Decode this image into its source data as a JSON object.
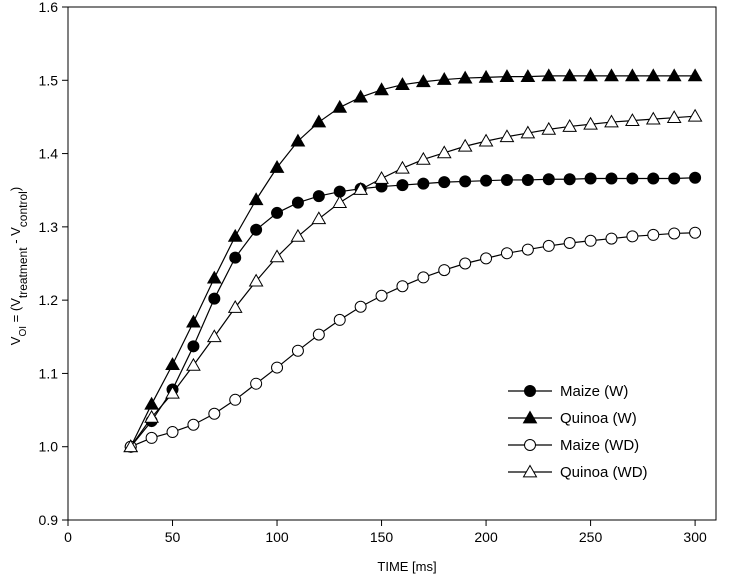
{
  "chart_data": {
    "type": "line",
    "xlabel": "TIME [ms]",
    "ylabel": "V_OI = (V_treatment - V_control)",
    "ylabel_parts": {
      "main": "V",
      "main_sub": "OI",
      "eq": " = (V",
      "sub1": "treatment",
      "mid": " - V",
      "sub2": "control",
      "end": ")"
    },
    "xlim": [
      0,
      310
    ],
    "ylim": [
      0.9,
      1.6
    ],
    "xticks": [
      0,
      50,
      100,
      150,
      200,
      250,
      300
    ],
    "yticks": [
      0.9,
      1.0,
      1.1,
      1.2,
      1.3,
      1.4,
      1.5,
      1.6
    ],
    "ytick_labels": [
      "0.9",
      "1.0",
      "1.1",
      "1.2",
      "1.3",
      "1.4",
      "1.5",
      "1.6"
    ],
    "grid": false,
    "legend_position": "bottom-right",
    "x": [
      30,
      40,
      50,
      60,
      70,
      80,
      90,
      100,
      110,
      120,
      130,
      140,
      150,
      160,
      170,
      180,
      190,
      200,
      210,
      220,
      230,
      240,
      250,
      260,
      270,
      280,
      290,
      300
    ],
    "series": [
      {
        "name": "Maize (W)",
        "marker": "circle",
        "fill": "filled",
        "values": [
          1.0,
          1.035,
          1.078,
          1.137,
          1.202,
          1.258,
          1.296,
          1.319,
          1.333,
          1.342,
          1.348,
          1.352,
          1.355,
          1.357,
          1.359,
          1.361,
          1.362,
          1.363,
          1.364,
          1.364,
          1.365,
          1.365,
          1.366,
          1.366,
          1.366,
          1.366,
          1.366,
          1.367
        ]
      },
      {
        "name": "Quinoa (W)",
        "marker": "triangle",
        "fill": "filled",
        "values": [
          1.0,
          1.058,
          1.112,
          1.17,
          1.23,
          1.287,
          1.337,
          1.381,
          1.417,
          1.443,
          1.463,
          1.477,
          1.487,
          1.494,
          1.498,
          1.501,
          1.503,
          1.504,
          1.505,
          1.505,
          1.506,
          1.506,
          1.506,
          1.506,
          1.506,
          1.506,
          1.506,
          1.506
        ]
      },
      {
        "name": "Maize (WD)",
        "marker": "circle",
        "fill": "open",
        "values": [
          1.0,
          1.012,
          1.02,
          1.03,
          1.045,
          1.064,
          1.086,
          1.108,
          1.131,
          1.153,
          1.173,
          1.191,
          1.206,
          1.219,
          1.231,
          1.241,
          1.25,
          1.257,
          1.264,
          1.269,
          1.274,
          1.278,
          1.281,
          1.284,
          1.287,
          1.289,
          1.291,
          1.292
        ]
      },
      {
        "name": "Quinoa (WD)",
        "marker": "triangle",
        "fill": "open",
        "values": [
          1.0,
          1.04,
          1.073,
          1.111,
          1.15,
          1.19,
          1.226,
          1.259,
          1.287,
          1.311,
          1.333,
          1.351,
          1.366,
          1.38,
          1.392,
          1.401,
          1.41,
          1.417,
          1.423,
          1.428,
          1.433,
          1.437,
          1.44,
          1.443,
          1.445,
          1.447,
          1.449,
          1.451
        ]
      }
    ]
  }
}
